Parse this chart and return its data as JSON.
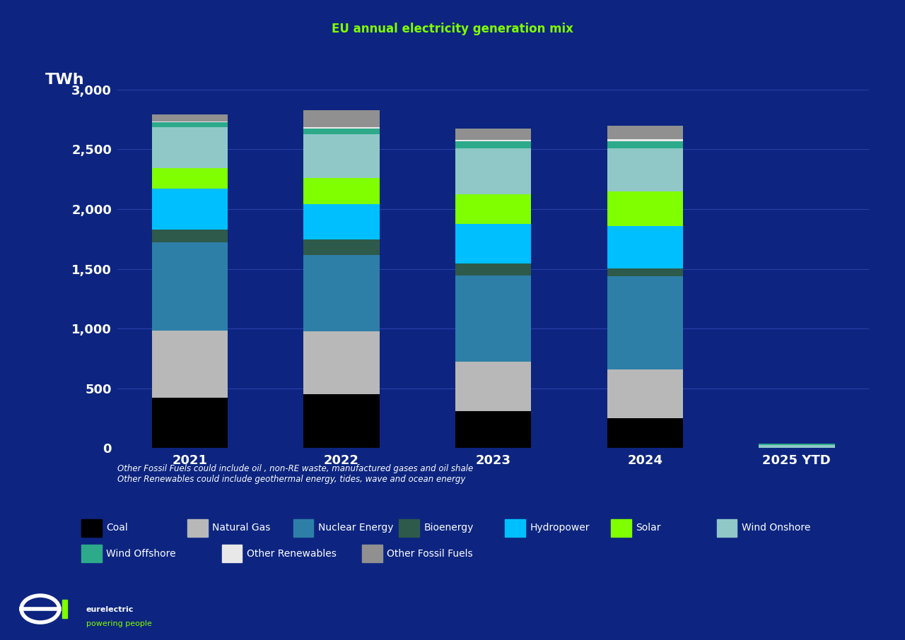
{
  "title": "EU annual electricity generation mix",
  "twh_label": "TWh",
  "background_color": "#0d2580",
  "plot_bg_color": "#0d2580",
  "grid_color": "#2a3faa",
  "text_color": "#ffffff",
  "title_color": "#7fff00",
  "years": [
    "2021",
    "2022",
    "2023",
    "2024",
    "2025 YTD"
  ],
  "categories": [
    "Coal",
    "Natural Gas",
    "Nuclear Energy",
    "Bioenergy",
    "Hydropower",
    "Solar",
    "Wind Onshore",
    "Wind Offshore",
    "Other Renewables",
    "Other Fossil Fuels"
  ],
  "colors": {
    "Coal": "#000000",
    "Natural Gas": "#b8b8b8",
    "Nuclear Energy": "#2e7fa8",
    "Bioenergy": "#2d5a4a",
    "Hydropower": "#00bfff",
    "Solar": "#7fff00",
    "Wind Onshore": "#90c8c8",
    "Wind Offshore": "#2daa8a",
    "Other Renewables": "#e8e8e8",
    "Other Fossil Fuels": "#909090"
  },
  "data": {
    "2021": {
      "Coal": 420,
      "Natural Gas": 560,
      "Nuclear Energy": 740,
      "Bioenergy": 110,
      "Hydropower": 340,
      "Solar": 175,
      "Wind Onshore": 340,
      "Wind Offshore": 40,
      "Other Renewables": 10,
      "Other Fossil Fuels": 55
    },
    "2022": {
      "Coal": 450,
      "Natural Gas": 525,
      "Nuclear Energy": 640,
      "Bioenergy": 130,
      "Hydropower": 295,
      "Solar": 220,
      "Wind Onshore": 365,
      "Wind Offshore": 50,
      "Other Renewables": 10,
      "Other Fossil Fuels": 140
    },
    "2023": {
      "Coal": 310,
      "Natural Gas": 415,
      "Nuclear Energy": 720,
      "Bioenergy": 100,
      "Hydropower": 330,
      "Solar": 250,
      "Wind Onshore": 385,
      "Wind Offshore": 55,
      "Other Renewables": 15,
      "Other Fossil Fuels": 95
    },
    "2024": {
      "Coal": 250,
      "Natural Gas": 410,
      "Nuclear Energy": 780,
      "Bioenergy": 65,
      "Hydropower": 355,
      "Solar": 290,
      "Wind Onshore": 360,
      "Wind Offshore": 60,
      "Other Renewables": 15,
      "Other Fossil Fuels": 110
    },
    "2025 YTD": {
      "Coal": 0,
      "Natural Gas": 0,
      "Nuclear Energy": 0,
      "Bioenergy": 0,
      "Hydropower": 0,
      "Solar": 0,
      "Wind Onshore": 25,
      "Wind Offshore": 10,
      "Other Renewables": 0,
      "Other Fossil Fuels": 0
    }
  },
  "footnote_line1": "Other Fossil Fuels could include oil , non-RE waste, manufactured gases and oil shale",
  "footnote_line2": "Other Renewables could include geothermal energy, tides, wave and ocean energy",
  "ylim": [
    0,
    3000
  ],
  "yticks": [
    0,
    500,
    1000,
    1500,
    2000,
    2500,
    3000
  ],
  "bar_width": 0.5,
  "legend_row1": [
    "Coal",
    "Natural Gas",
    "Nuclear Energy",
    "Bioenergy",
    "Hydropower",
    "Solar",
    "Wind Onshore"
  ],
  "legend_row2": [
    "Wind Offshore",
    "Other Renewables",
    "Other Fossil Fuels"
  ]
}
